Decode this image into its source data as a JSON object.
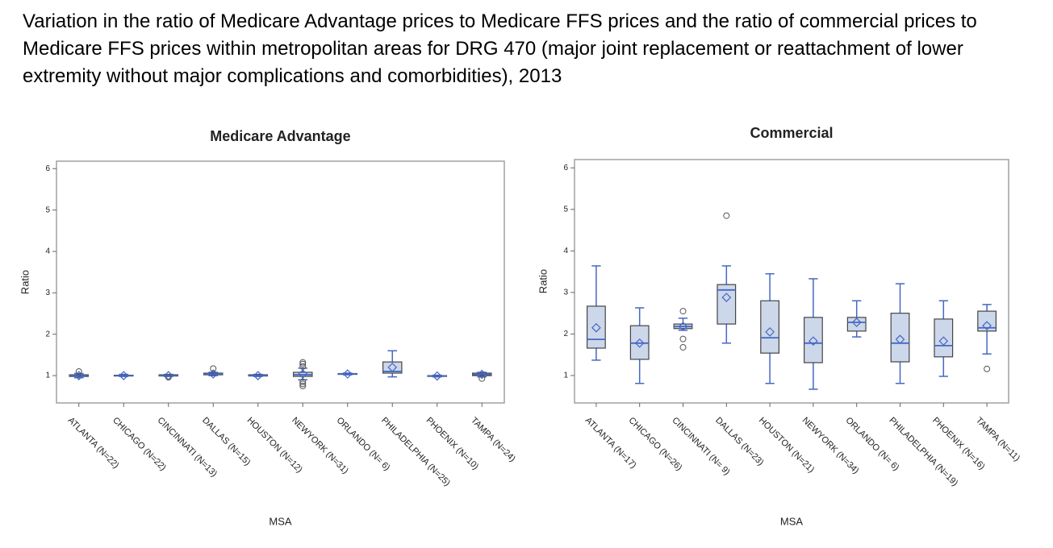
{
  "title": "Variation in the ratio of Medicare Advantage prices to Medicare FFS prices and the ratio of commercial prices to Medicare FFS prices within metropolitan areas for DRG 470 (major joint replacement or reattachment of lower extremity without major complications and comorbidities), 2013",
  "chart_data": [
    {
      "type": "box",
      "title": "Medicare Advantage",
      "x_label": "MSA",
      "y_label": "Ratio",
      "color": "#4468c4",
      "box_fill": "#ccd7ea",
      "categories": [
        "ATLANTA (N=22)",
        "CHICAGO (N=22)",
        "CINCINNATI (N=13)",
        "DALLAS (N=15)",
        "HOUSTON (N=12)",
        "NEWYORK (N=31)",
        "ORLANDO (N= 6)",
        "PHILADELPHIA (N=25)",
        "PHOENIX (N=10)",
        "TAMPA (N=24)"
      ],
      "boxes": [
        {
          "low": 0.95,
          "q1": 0.98,
          "median": 1.0,
          "q3": 1.02,
          "high": 1.05,
          "mean": 1.0,
          "outliers": [
            1.1
          ]
        },
        {
          "low": 0.98,
          "q1": 0.99,
          "median": 1.0,
          "q3": 1.01,
          "high": 1.03,
          "mean": 1.0,
          "outliers": []
        },
        {
          "low": 0.98,
          "q1": 0.99,
          "median": 1.0,
          "q3": 1.02,
          "high": 1.03,
          "mean": 1.0,
          "outliers": [
            0.96
          ]
        },
        {
          "low": 1.0,
          "q1": 1.02,
          "median": 1.04,
          "q3": 1.06,
          "high": 1.08,
          "mean": 1.04,
          "outliers": [
            1.17
          ]
        },
        {
          "low": 0.98,
          "q1": 0.99,
          "median": 1.0,
          "q3": 1.02,
          "high": 1.03,
          "mean": 1.0,
          "outliers": []
        },
        {
          "low": 0.9,
          "q1": 0.98,
          "median": 1.02,
          "q3": 1.08,
          "high": 1.18,
          "mean": 1.04,
          "outliers": [
            1.22,
            1.28,
            1.32,
            0.85,
            0.8,
            0.75
          ]
        },
        {
          "low": 1.02,
          "q1": 1.03,
          "median": 1.04,
          "q3": 1.05,
          "high": 1.06,
          "mean": 1.04,
          "outliers": []
        },
        {
          "low": 0.97,
          "q1": 1.06,
          "median": 1.1,
          "q3": 1.33,
          "high": 1.6,
          "mean": 1.2,
          "outliers": []
        },
        {
          "low": 0.97,
          "q1": 0.98,
          "median": 0.99,
          "q3": 1.0,
          "high": 1.01,
          "mean": 0.99,
          "outliers": []
        },
        {
          "low": 0.97,
          "q1": 1.0,
          "median": 1.03,
          "q3": 1.06,
          "high": 1.08,
          "mean": 1.03,
          "outliers": [
            0.93
          ]
        }
      ],
      "ylim": [
        0.34,
        6.18
      ],
      "yticks": [
        1,
        2,
        3,
        4,
        5,
        6
      ]
    },
    {
      "type": "box",
      "title": "Commercial",
      "x_label": "MSA",
      "y_label": "Ratio",
      "color": "#4468c4",
      "box_fill": "#ccd7ea",
      "categories": [
        "ATLANTA (N=17)",
        "CHICAGO (N=26)",
        "CINCINNATI (N= 9)",
        "DALLAS (N=23)",
        "HOUSTON (N=21)",
        "NEWYORK (N=34)",
        "ORLANDO (N= 6)",
        "PHILADELPHIA (N=19)",
        "PHOENIX (N=16)",
        "TAMPA (N=11)"
      ],
      "boxes": [
        {
          "low": 1.37,
          "q1": 1.66,
          "median": 1.87,
          "q3": 2.67,
          "high": 3.64,
          "mean": 2.15,
          "outliers": []
        },
        {
          "low": 0.81,
          "q1": 1.39,
          "median": 1.78,
          "q3": 2.2,
          "high": 2.63,
          "mean": 1.78,
          "outliers": []
        },
        {
          "low": 2.09,
          "q1": 2.13,
          "median": 2.18,
          "q3": 2.24,
          "high": 2.38,
          "mean": 2.18,
          "outliers": [
            2.55,
            1.88,
            1.68
          ]
        },
        {
          "low": 1.78,
          "q1": 2.24,
          "median": 3.06,
          "q3": 3.19,
          "high": 3.64,
          "mean": 2.88,
          "outliers": [
            4.85
          ]
        },
        {
          "low": 0.81,
          "q1": 1.54,
          "median": 1.91,
          "q3": 2.8,
          "high": 3.45,
          "mean": 2.05,
          "outliers": []
        },
        {
          "low": 0.67,
          "q1": 1.31,
          "median": 1.78,
          "q3": 2.4,
          "high": 3.33,
          "mean": 1.83,
          "outliers": []
        },
        {
          "low": 1.93,
          "q1": 2.07,
          "median": 2.28,
          "q3": 2.4,
          "high": 2.8,
          "mean": 2.28,
          "outliers": []
        },
        {
          "low": 0.81,
          "q1": 1.33,
          "median": 1.78,
          "q3": 2.5,
          "high": 3.21,
          "mean": 1.87,
          "outliers": []
        },
        {
          "low": 0.98,
          "q1": 1.45,
          "median": 1.72,
          "q3": 2.36,
          "high": 2.8,
          "mean": 1.83,
          "outliers": []
        },
        {
          "low": 1.52,
          "q1": 2.07,
          "median": 2.15,
          "q3": 2.55,
          "high": 2.71,
          "mean": 2.2,
          "outliers": [
            1.16
          ]
        }
      ],
      "ylim": [
        0.34,
        6.2
      ],
      "yticks": [
        1,
        2,
        3,
        4,
        5,
        6
      ]
    }
  ]
}
